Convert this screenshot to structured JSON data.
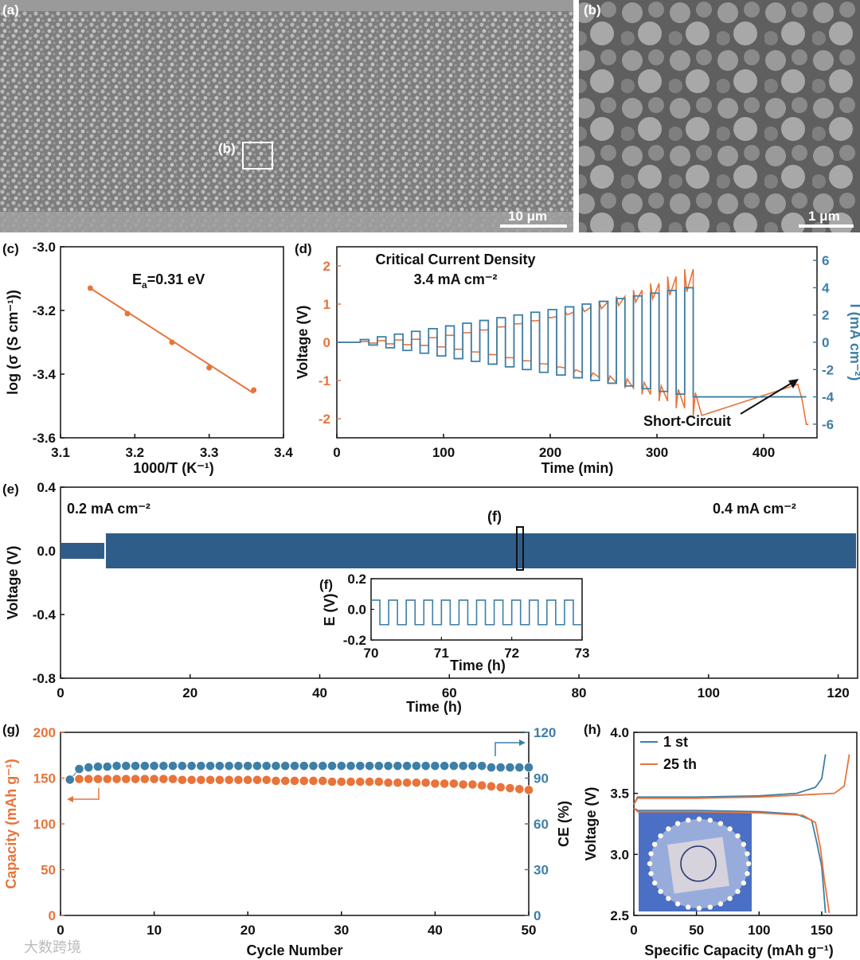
{
  "colors": {
    "orange": "#E8743B",
    "blue": "#3D7FA6",
    "navy": "#2F5D8A",
    "sem_bg": "#8e8e8e"
  },
  "panel_labels": {
    "a": "(a)",
    "b": "(b)",
    "c": "(c)",
    "d": "(d)",
    "e": "(e)",
    "g": "(g)",
    "h": "(h)"
  },
  "sem": {
    "a_box_label": "(b)",
    "a_scale": "10 μm",
    "b_scale": "1 μm"
  },
  "watermark": "大数跨境",
  "chart_data": [
    {
      "panel": "c",
      "type": "scatter",
      "xlabel": "1000/T (K⁻¹)",
      "ylabel": "log (σ (S cm⁻¹))",
      "xlim": [
        3.1,
        3.4
      ],
      "ylim": [
        -3.6,
        -3.0
      ],
      "xticks": [
        "3.1",
        "3.2",
        "3.3",
        "3.4"
      ],
      "yticks": [
        "-3.0",
        "-3.2",
        "-3.4",
        "-3.6"
      ],
      "annotation": "Eₐ=0.31 eV",
      "points": [
        [
          3.14,
          -3.13
        ],
        [
          3.19,
          -3.21
        ],
        [
          3.25,
          -3.3
        ],
        [
          3.3,
          -3.38
        ],
        [
          3.36,
          -3.45
        ]
      ],
      "fit_line": [
        [
          3.14,
          -3.13
        ],
        [
          3.36,
          -3.46
        ]
      ]
    },
    {
      "panel": "d",
      "type": "line",
      "title": "Critical Current Density",
      "subtitle": "3.4 mA cm⁻²",
      "xlabel": "Time (min)",
      "ylabel": "Voltage (V)",
      "y2label": "I (mA cm⁻²)",
      "xlim": [
        0,
        450
      ],
      "ylim": [
        -2.5,
        2.5
      ],
      "y2lim": [
        -7,
        7
      ],
      "xticks": [
        "0",
        "100",
        "200",
        "300",
        "400"
      ],
      "yticks": [
        "2",
        "1",
        "0",
        "-1",
        "-2"
      ],
      "y2ticks": [
        "6",
        "4",
        "2",
        "0",
        "-2",
        "-4",
        "-6"
      ],
      "annotation": "Short-Circuit",
      "series": [
        {
          "name": "Voltage",
          "step_start_min": 22,
          "step_min": 16,
          "amplitudes_V": [
            0.02,
            0.04,
            0.06,
            0.08,
            0.12,
            0.18,
            0.25,
            0.32,
            0.4,
            0.48,
            0.56,
            0.64,
            0.72,
            0.8,
            0.88,
            0.96,
            1.05,
            1.14,
            1.23,
            1.32
          ]
        },
        {
          "name": "Current",
          "step_mA_cm2": [
            0.2,
            0.4,
            0.6,
            0.8,
            1.0,
            1.2,
            1.4,
            1.6,
            1.8,
            2.0,
            2.2,
            2.4,
            2.6,
            2.8,
            3.0,
            3.2,
            3.4,
            3.6,
            3.8,
            4.0
          ]
        }
      ],
      "short_circuit_min": 432
    },
    {
      "panel": "e",
      "type": "line",
      "xlabel": "Time (h)",
      "ylabel": "Voltage (V)",
      "xlim": [
        0,
        123
      ],
      "ylim": [
        -0.8,
        0.4
      ],
      "xticks": [
        "0",
        "20",
        "40",
        "60",
        "80",
        "100",
        "120"
      ],
      "yticks": [
        "0.4",
        "0.0",
        "-0.4",
        "-0.8"
      ],
      "annotations": [
        "0.2 mA cm⁻²",
        "0.4 mA cm⁻²",
        "(f)"
      ],
      "segments": [
        {
          "from_h": 0,
          "to_h": 7,
          "amplitude_V": 0.05
        },
        {
          "from_h": 7,
          "to_h": 123,
          "amplitude_V": 0.11
        }
      ],
      "inset": {
        "label": "(f)",
        "xlabel": "Time (h)",
        "ylabel": "E (V)",
        "xlim": [
          70,
          73
        ],
        "ylim": [
          -0.2,
          0.2
        ],
        "xticks": [
          "70",
          "71",
          "72",
          "73"
        ],
        "yticks": [
          "0.2",
          "0.0",
          "-0.2"
        ],
        "amplitude_V": 0.1,
        "period_h": 0.25
      }
    },
    {
      "panel": "g",
      "type": "scatter",
      "xlabel": "Cycle Number",
      "ylabel": "Capacity (mAh g⁻¹)",
      "y2label": "CE (%)",
      "xlim": [
        0,
        50
      ],
      "ylim": [
        0,
        200
      ],
      "y2lim": [
        0,
        120
      ],
      "xticks": [
        "0",
        "10",
        "20",
        "30",
        "40",
        "50"
      ],
      "yticks": [
        "200",
        "150",
        "100",
        "50",
        "0"
      ],
      "y2ticks": [
        "120",
        "90",
        "60",
        "30",
        "0"
      ],
      "series": [
        {
          "name": "Capacity",
          "values": [
            148,
            149,
            149,
            149,
            149,
            149,
            149,
            149,
            149,
            149,
            149,
            149,
            148,
            148,
            148,
            148,
            148,
            148,
            148,
            148,
            148,
            148,
            147,
            147,
            147,
            147,
            147,
            147,
            146,
            146,
            146,
            146,
            146,
            146,
            145,
            145,
            145,
            145,
            145,
            144,
            144,
            144,
            143,
            143,
            142,
            141,
            140,
            139,
            138,
            137
          ]
        },
        {
          "name": "CE",
          "values": [
            89,
            96,
            97,
            97.5,
            97.5,
            98,
            98,
            98,
            98,
            98,
            98,
            98,
            98,
            98,
            98,
            98,
            98,
            98,
            98,
            98,
            98,
            98,
            98,
            98,
            98,
            98,
            98,
            98,
            98,
            98,
            98,
            98,
            98,
            98,
            98,
            98,
            98,
            98,
            98,
            98,
            98,
            98,
            98,
            98,
            98,
            97,
            97,
            97,
            97,
            97
          ]
        }
      ]
    },
    {
      "panel": "h",
      "type": "line",
      "xlabel": "Specific Capacity (mAh g⁻¹)",
      "ylabel": "Voltage (V)",
      "xlim": [
        0,
        178
      ],
      "ylim": [
        2.5,
        4.0
      ],
      "xticks": [
        "0",
        "50",
        "100",
        "150"
      ],
      "yticks": [
        "4.0",
        "3.5",
        "3.0",
        "2.5"
      ],
      "legend": [
        "1 st",
        "25 th"
      ],
      "series": [
        {
          "name": "1 st",
          "charge": [
            [
              0,
              3.41
            ],
            [
              3,
              3.47
            ],
            [
              50,
              3.47
            ],
            [
              100,
              3.48
            ],
            [
              130,
              3.5
            ],
            [
              145,
              3.55
            ],
            [
              150,
              3.62
            ],
            [
              153,
              3.82
            ]
          ],
          "discharge": [
            [
              0,
              3.38
            ],
            [
              3,
              3.36
            ],
            [
              50,
              3.36
            ],
            [
              100,
              3.35
            ],
            [
              130,
              3.33
            ],
            [
              142,
              3.28
            ],
            [
              146,
              3.1
            ],
            [
              150,
              2.9
            ],
            [
              153,
              2.52
            ]
          ]
        },
        {
          "name": "25 th",
          "charge": [
            [
              0,
              3.41
            ],
            [
              3,
              3.46
            ],
            [
              50,
              3.46
            ],
            [
              100,
              3.47
            ],
            [
              140,
              3.49
            ],
            [
              160,
              3.5
            ],
            [
              168,
              3.56
            ],
            [
              172,
              3.82
            ]
          ],
          "discharge": [
            [
              0,
              3.38
            ],
            [
              3,
              3.35
            ],
            [
              50,
              3.35
            ],
            [
              100,
              3.34
            ],
            [
              135,
              3.32
            ],
            [
              145,
              3.26
            ],
            [
              149,
              3.05
            ],
            [
              152,
              2.8
            ],
            [
              156,
              2.52
            ]
          ]
        }
      ]
    }
  ]
}
